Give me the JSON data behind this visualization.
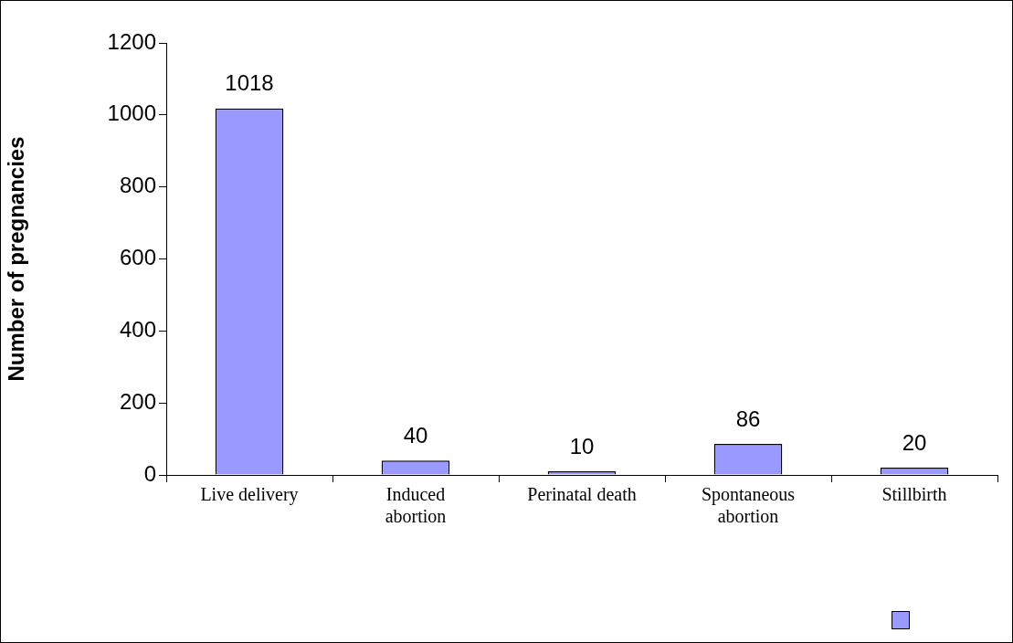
{
  "chart_data": {
    "type": "bar",
    "ylabel": "Number of pregnancies",
    "categories": [
      "Live delivery",
      "Induced\nabortion",
      "Perinatal death",
      "Spontaneous\nabortion",
      "Stillbirth"
    ],
    "series": [
      {
        "color": "#9999ff",
        "values": [
          1018,
          40,
          10,
          86,
          20
        ]
      }
    ],
    "ylim": [
      0,
      1200
    ],
    "yticks": [
      0,
      200,
      400,
      600,
      800,
      1000,
      1200
    ],
    "grid": false,
    "data_labels": true
  }
}
